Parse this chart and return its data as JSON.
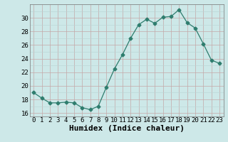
{
  "x": [
    0,
    1,
    2,
    3,
    4,
    5,
    6,
    7,
    8,
    9,
    10,
    11,
    12,
    13,
    14,
    15,
    16,
    17,
    18,
    19,
    20,
    21,
    22,
    23
  ],
  "y": [
    19.0,
    18.2,
    17.5,
    17.5,
    17.6,
    17.5,
    16.8,
    16.5,
    17.0,
    19.8,
    22.5,
    24.6,
    27.0,
    29.0,
    29.8,
    29.2,
    30.1,
    30.2,
    31.2,
    29.3,
    28.5,
    26.2,
    23.8,
    23.3
  ],
  "line_color": "#2e7d6e",
  "marker": "D",
  "marker_size": 2.5,
  "bg_color": "#cde8e8",
  "grid_color_minor": "#b8d4d4",
  "grid_color_major": "#c4a8a8",
  "xlabel": "Humidex (Indice chaleur)",
  "xlabel_fontsize": 8,
  "ylim": [
    15.5,
    32.0
  ],
  "yticks": [
    16,
    18,
    20,
    22,
    24,
    26,
    28,
    30
  ],
  "xticks": [
    0,
    1,
    2,
    3,
    4,
    5,
    6,
    7,
    8,
    9,
    10,
    11,
    12,
    13,
    14,
    15,
    16,
    17,
    18,
    19,
    20,
    21,
    22,
    23
  ],
  "tick_fontsize": 6.5
}
